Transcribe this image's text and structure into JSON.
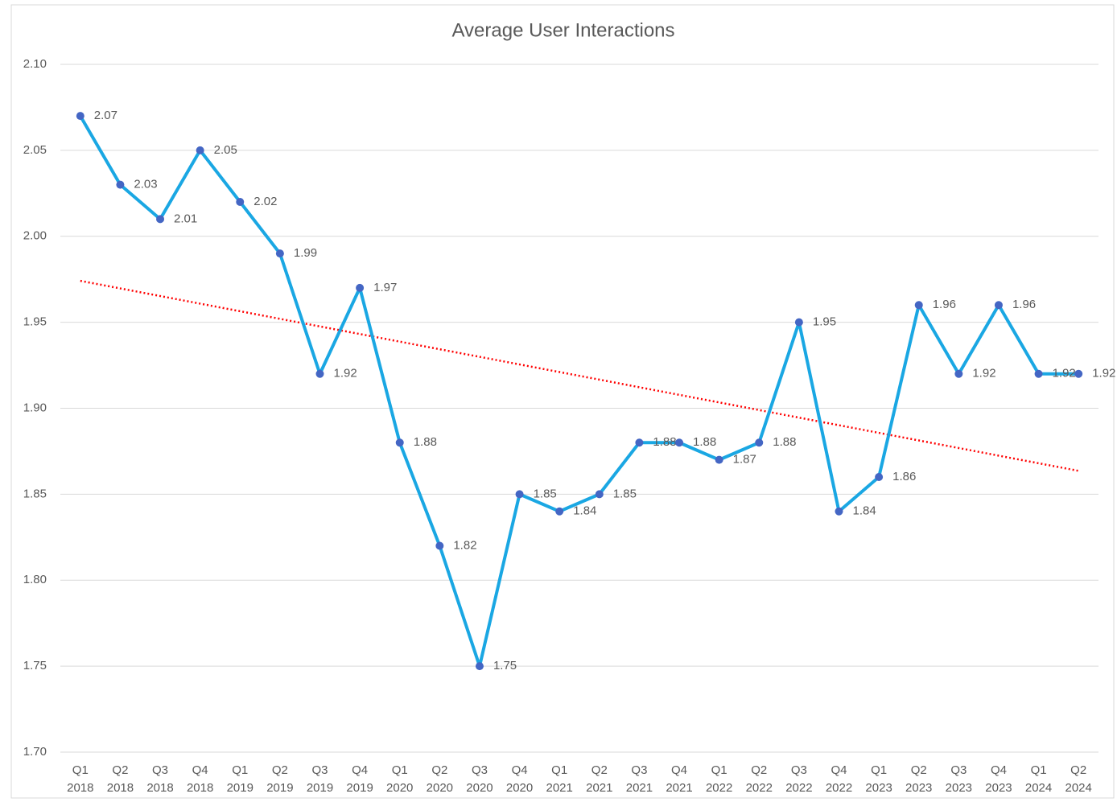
{
  "chart_data": {
    "type": "line",
    "title": "Average User Interactions",
    "categories": [
      [
        "Q1",
        "2018"
      ],
      [
        "Q2",
        "2018"
      ],
      [
        "Q3",
        "2018"
      ],
      [
        "Q4",
        "2018"
      ],
      [
        "Q1",
        "2019"
      ],
      [
        "Q2",
        "2019"
      ],
      [
        "Q3",
        "2019"
      ],
      [
        "Q4",
        "2019"
      ],
      [
        "Q1",
        "2020"
      ],
      [
        "Q2",
        "2020"
      ],
      [
        "Q3",
        "2020"
      ],
      [
        "Q4",
        "2020"
      ],
      [
        "Q1",
        "2021"
      ],
      [
        "Q2",
        "2021"
      ],
      [
        "Q3",
        "2021"
      ],
      [
        "Q4",
        "2021"
      ],
      [
        "Q1",
        "2022"
      ],
      [
        "Q2",
        "2022"
      ],
      [
        "Q3",
        "2022"
      ],
      [
        "Q4",
        "2022"
      ],
      [
        "Q1",
        "2023"
      ],
      [
        "Q2",
        "2023"
      ],
      [
        "Q3",
        "2023"
      ],
      [
        "Q4",
        "2023"
      ],
      [
        "Q1",
        "2024"
      ],
      [
        "Q2",
        "2024"
      ]
    ],
    "values": [
      2.07,
      2.03,
      2.01,
      2.05,
      2.02,
      1.99,
      1.92,
      1.97,
      1.88,
      1.82,
      1.75,
      1.85,
      1.84,
      1.85,
      1.88,
      1.88,
      1.87,
      1.88,
      1.95,
      1.84,
      1.86,
      1.96,
      1.92,
      1.96,
      1.92,
      1.92
    ],
    "color": "#1aa7e3",
    "marker_color": "#4466c4",
    "ylim": [
      1.7,
      2.1
    ],
    "yticks": [
      {
        "value": 1.7,
        "label": "1.70"
      },
      1.75,
      {
        "value": 1.8,
        "label": "1.80"
      },
      1.85,
      {
        "value": 1.9,
        "label": "1.90"
      },
      1.95,
      {
        "value": 2.0,
        "label": "2.00"
      },
      2.05,
      {
        "value": 2.1,
        "label": "2.10"
      }
    ],
    "grid": true,
    "trendline": {
      "type": "linear",
      "color": "#ff0000"
    }
  }
}
